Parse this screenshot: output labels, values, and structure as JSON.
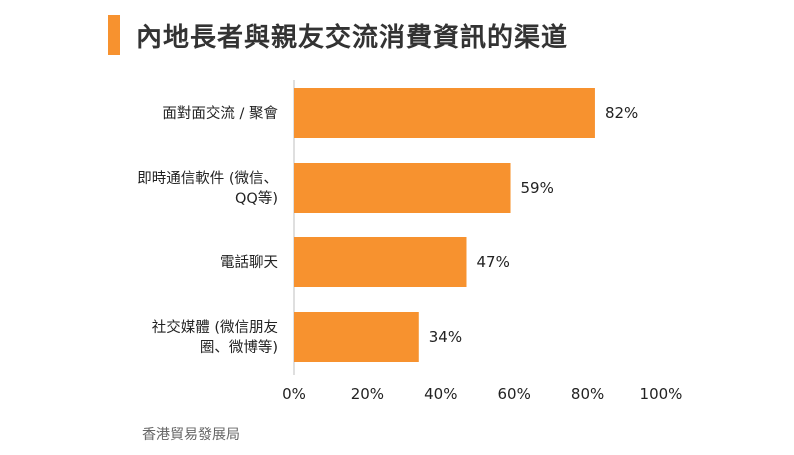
{
  "title": "內地長者與親友交流消費資訊的渠道",
  "source": "香港貿易發展局",
  "colors": {
    "accent": "#F7922F",
    "bar": "#F7922F"
  },
  "chart_data": {
    "type": "bar",
    "orientation": "horizontal",
    "categories": [
      [
        "面對面交流 / 聚會"
      ],
      [
        "即時通信軟件 (微信、",
        "QQ等)"
      ],
      [
        "電話聊天"
      ],
      [
        "社交媒體 (微信朋友",
        "圈、微博等)"
      ]
    ],
    "values": [
      82,
      59,
      47,
      34
    ],
    "value_labels": [
      "82%",
      "59%",
      "47%",
      "34%"
    ],
    "xlim": [
      0,
      100
    ],
    "ticks": [
      0,
      20,
      40,
      60,
      80,
      100
    ],
    "tick_labels": [
      "0%",
      "20%",
      "40%",
      "60%",
      "80%",
      "100%"
    ],
    "grid": false
  }
}
